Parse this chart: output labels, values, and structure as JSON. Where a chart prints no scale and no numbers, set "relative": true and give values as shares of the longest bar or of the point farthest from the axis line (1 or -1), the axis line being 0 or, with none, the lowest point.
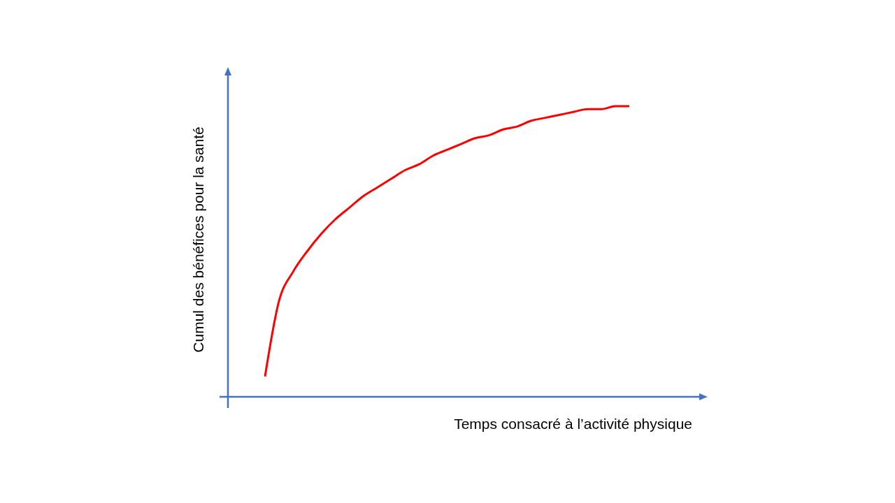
{
  "chart_data": {
    "type": "line",
    "relative": true,
    "xlabel": "Temps consacré à l’activité physique",
    "ylabel": "Cumul des bénéfices pour la santé",
    "categories": [
      null,
      null,
      null,
      null,
      null,
      null,
      null,
      null,
      null,
      null,
      null,
      null,
      null,
      null,
      null,
      null,
      null,
      null,
      null,
      null,
      null,
      null,
      null,
      null,
      null,
      null,
      null
    ],
    "series": [
      {
        "color": "#ff0000",
        "values": [
          0.07,
          0.33,
          0.43,
          0.5,
          0.56,
          0.61,
          0.65,
          0.69,
          0.72,
          0.75,
          0.78,
          0.8,
          0.83,
          0.85,
          0.87,
          0.89,
          0.9,
          0.92,
          0.93,
          0.95,
          0.96,
          0.97,
          0.98,
          0.99,
          0.99,
          1.0,
          1.0
        ]
      }
    ]
  }
}
